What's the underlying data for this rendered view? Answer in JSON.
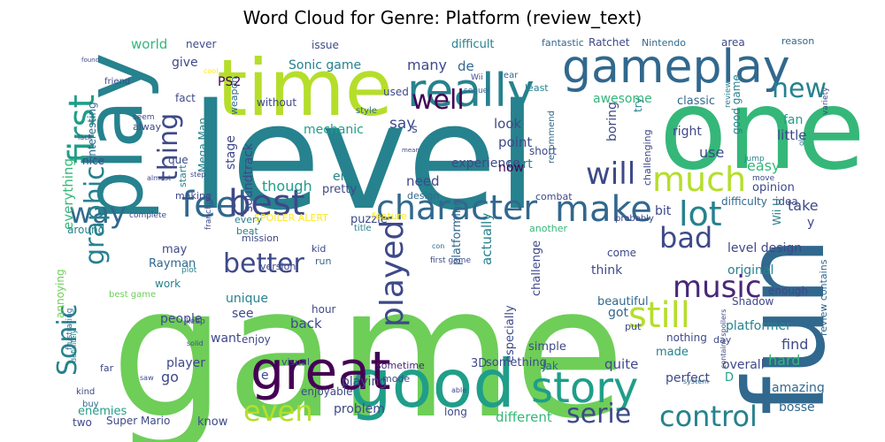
{
  "title": "Word Cloud for Genre: Platform (review_text)",
  "palette": [
    "#440154",
    "#482878",
    "#3e4989",
    "#31688e",
    "#26828e",
    "#1f9e89",
    "#35b779",
    "#6ece58",
    "#b5de2b",
    "#fde725"
  ],
  "words": [
    "game",
    "level",
    "fun",
    "one",
    "time",
    "play",
    "good",
    "gameplay",
    "really",
    "great",
    "character",
    "feel",
    "best",
    "story",
    "way",
    "make",
    "lot",
    "much",
    "still",
    "played",
    "will",
    "well",
    "new",
    "better",
    "bad",
    "music",
    "first",
    "graphic",
    "thing",
    "serie",
    "even",
    "control",
    "Sonic",
    "world",
    "never",
    "issue",
    "difficult",
    "fantastic",
    "Ratchet",
    "Nintendo",
    "area",
    "reason",
    "give",
    "PS2",
    "Sonic game",
    "many",
    "de",
    "year",
    "least",
    "fan",
    "classic",
    "mechanic",
    "say",
    "awesome",
    "look",
    "point",
    "part",
    "short",
    "boring",
    "try",
    "right",
    "good game",
    "little",
    "use",
    "easy",
    "experience",
    "now",
    "though",
    "end",
    "need",
    "pretty",
    "design",
    "combat",
    "idea",
    "take",
    "bit",
    "level design",
    "original",
    "think",
    "challenge",
    "platforming",
    "actually",
    "especially",
    "people",
    "want",
    "back",
    "hour",
    "enjoy",
    "platformer",
    "find",
    "hard",
    "overall",
    "quite",
    "made",
    "player",
    "go",
    "amazing",
    "perfect",
    "bosse",
    "playing",
    "problem",
    "different",
    "long",
    "sometime",
    "visual",
    "3D",
    "something",
    "Jak",
    "simple",
    "enemies",
    "two",
    "Super Mario",
    "know",
    "kind",
    "buy",
    "far",
    "annoying",
    "everything",
    "around",
    "nice",
    "que",
    "start",
    "stage",
    "soundtrack",
    "Mega Man",
    "weapon",
    "without",
    "fact",
    "interesting",
    "alway",
    "friend",
    "seem",
    "found",
    "used",
    "difficulty",
    "opinion",
    "Wii U",
    "every",
    "beat",
    "SPOILER ALERT",
    "puzzle",
    "feature",
    "title",
    "mission",
    "kid",
    "run",
    "version",
    "unique",
    "see",
    "work",
    "may",
    "Rayman",
    "best game",
    "come",
    "got",
    "beautiful",
    "nothing",
    "day",
    "put",
    "enough",
    "Shadow",
    "review contains",
    "making",
    "another",
    "y",
    "mode",
    "enjoyable",
    "e",
    "D",
    "s",
    "system",
    "jump",
    "move",
    "mean",
    "style",
    "recommend",
    "challenging",
    "franchise",
    "Wii",
    "sequel",
    "review",
    "variety",
    "old",
    "probably",
    "almost",
    "complete",
    "first game",
    "plot",
    "keep",
    "solid",
    "definitely",
    "frustrating",
    "contains spoilers",
    "con",
    "cool",
    "lack",
    "saw",
    "able",
    "step"
  ]
}
